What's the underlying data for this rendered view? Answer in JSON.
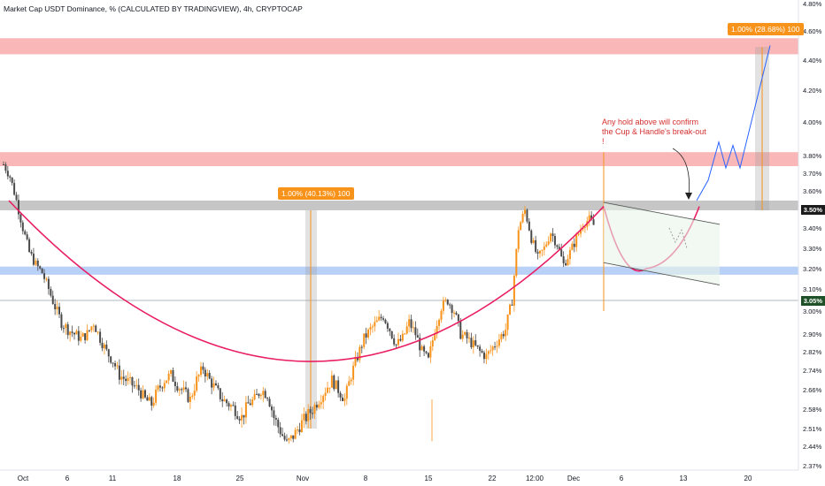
{
  "header": {
    "title": "Market Cap USDT Dominance, % (CALCULATED BY TRADINGVIEW), 4h, CRYPTOCAP"
  },
  "measure_left": {
    "label": "1.00% (40.13%) 100"
  },
  "measure_right": {
    "label": "1.00% (28.68%) 100"
  },
  "annotation": {
    "text": "Any hold above will confirm the Cup & Handle's break-out !"
  },
  "price_tags": {
    "upper": "3.50%",
    "lower": "3.05%"
  },
  "colors": {
    "up": "#f7931a",
    "down": "#4a4a4a",
    "cup_curve": "#e91e63",
    "resistance_zone": "#f8a5a5",
    "support_zone": "#a8c4f5",
    "neckline_zone": "#b8b8b8",
    "projection": "#2962ff",
    "tag_dark": "#1b1b1b",
    "tag_green": "#1e5128"
  },
  "chart_data": {
    "type": "candlestick",
    "xlabel": "",
    "ylabel": "",
    "x_ticks": [
      "Oct",
      "6",
      "11",
      "18",
      "25",
      "Nov",
      "8",
      "15",
      "22",
      "12:00",
      "Dec",
      "6",
      "13",
      "20"
    ],
    "y_ticks": [
      "4.80%",
      "4.60%",
      "4.40%",
      "4.20%",
      "4.00%",
      "3.80%",
      "3.70%",
      "3.60%",
      "3.40%",
      "3.30%",
      "3.20%",
      "3.10%",
      "3.00%",
      "2.90%",
      "2.82%",
      "2.74%",
      "2.66%",
      "2.58%",
      "2.51%",
      "2.44%",
      "2.37%"
    ],
    "y_range": [
      2.37,
      4.8
    ],
    "zones": [
      {
        "name": "resistance-upper",
        "range": [
          4.44,
          4.55
        ]
      },
      {
        "name": "resistance-lower",
        "range": [
          3.74,
          3.82
        ]
      },
      {
        "name": "neckline",
        "range": [
          3.5,
          3.55
        ]
      },
      {
        "name": "support",
        "range": [
          3.17,
          3.21
        ]
      }
    ],
    "close_path": [
      3.75,
      3.68,
      3.55,
      3.4,
      3.28,
      3.22,
      3.18,
      3.1,
      3.02,
      2.95,
      2.92,
      2.9,
      2.88,
      2.9,
      2.95,
      2.88,
      2.82,
      2.78,
      2.72,
      2.7,
      2.68,
      2.66,
      2.62,
      2.6,
      2.66,
      2.7,
      2.72,
      2.68,
      2.65,
      2.62,
      2.7,
      2.75,
      2.7,
      2.66,
      2.62,
      2.6,
      2.58,
      2.55,
      2.6,
      2.62,
      2.66,
      2.64,
      2.55,
      2.5,
      2.45,
      2.48,
      2.52,
      2.55,
      2.58,
      2.62,
      2.66,
      2.7,
      2.66,
      2.62,
      2.72,
      2.8,
      2.88,
      2.92,
      2.95,
      2.98,
      2.92,
      2.85,
      2.88,
      2.95,
      2.9,
      2.82,
      2.78,
      2.92,
      3.02,
      3.05,
      3.0,
      2.9,
      2.88,
      2.85,
      2.82,
      2.8,
      2.84,
      2.88,
      2.92,
      3.05,
      3.4,
      3.5,
      3.35,
      3.25,
      3.3,
      3.38,
      3.32,
      3.22,
      3.28,
      3.35,
      3.42,
      3.45,
      3.4
    ]
  }
}
